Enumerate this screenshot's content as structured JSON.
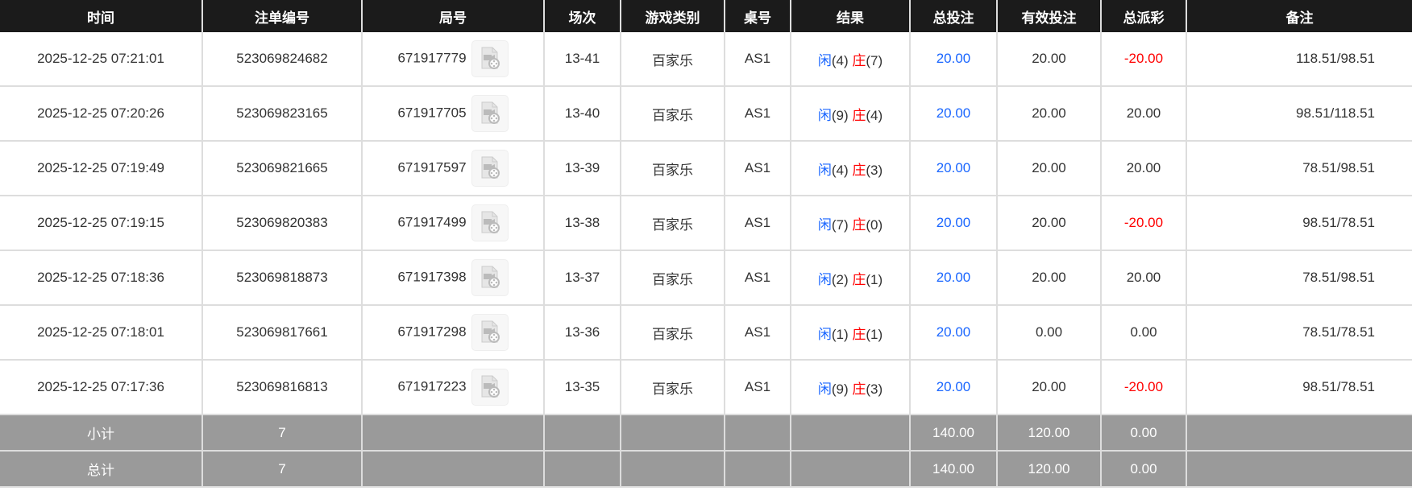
{
  "headers": [
    "时间",
    "注单编号",
    "局号",
    "场次",
    "游戏类别",
    "桌号",
    "结果",
    "总投注",
    "有效投注",
    "总派彩",
    "备注"
  ],
  "colors": {
    "header_bg": "#1b1b1b",
    "summary_bg": "#9a9a9a",
    "player": "#1a66ff",
    "banker": "#ff0000",
    "negative": "#ff0000",
    "bet": "#1a66ff"
  },
  "rows": [
    {
      "time": "2025-12-25 07:21:01",
      "order": "523069824682",
      "round": "671917779",
      "session": "13-41",
      "game": "百家乐",
      "table": "AS1",
      "player_label": "闲",
      "player_score": "(4)",
      "banker_label": "庄",
      "banker_score": "(7)",
      "bet": "20.00",
      "valid": "20.00",
      "payout": "-20.00",
      "payout_negative": true,
      "remark": "118.51/98.51"
    },
    {
      "time": "2025-12-25 07:20:26",
      "order": "523069823165",
      "round": "671917705",
      "session": "13-40",
      "game": "百家乐",
      "table": "AS1",
      "player_label": "闲",
      "player_score": "(9)",
      "banker_label": "庄",
      "banker_score": "(4)",
      "bet": "20.00",
      "valid": "20.00",
      "payout": "20.00",
      "payout_negative": false,
      "remark": "98.51/118.51"
    },
    {
      "time": "2025-12-25 07:19:49",
      "order": "523069821665",
      "round": "671917597",
      "session": "13-39",
      "game": "百家乐",
      "table": "AS1",
      "player_label": "闲",
      "player_score": "(4)",
      "banker_label": "庄",
      "banker_score": "(3)",
      "bet": "20.00",
      "valid": "20.00",
      "payout": "20.00",
      "payout_negative": false,
      "remark": "78.51/98.51"
    },
    {
      "time": "2025-12-25 07:19:15",
      "order": "523069820383",
      "round": "671917499",
      "session": "13-38",
      "game": "百家乐",
      "table": "AS1",
      "player_label": "闲",
      "player_score": "(7)",
      "banker_label": "庄",
      "banker_score": "(0)",
      "bet": "20.00",
      "valid": "20.00",
      "payout": "-20.00",
      "payout_negative": true,
      "remark": "98.51/78.51"
    },
    {
      "time": "2025-12-25 07:18:36",
      "order": "523069818873",
      "round": "671917398",
      "session": "13-37",
      "game": "百家乐",
      "table": "AS1",
      "player_label": "闲",
      "player_score": "(2)",
      "banker_label": "庄",
      "banker_score": "(1)",
      "bet": "20.00",
      "valid": "20.00",
      "payout": "20.00",
      "payout_negative": false,
      "remark": "78.51/98.51"
    },
    {
      "time": "2025-12-25 07:18:01",
      "order": "523069817661",
      "round": "671917298",
      "session": "13-36",
      "game": "百家乐",
      "table": "AS1",
      "player_label": "闲",
      "player_score": "(1)",
      "banker_label": "庄",
      "banker_score": "(1)",
      "bet": "20.00",
      "valid": "0.00",
      "payout": "0.00",
      "payout_negative": false,
      "remark": "78.51/78.51"
    },
    {
      "time": "2025-12-25 07:17:36",
      "order": "523069816813",
      "round": "671917223",
      "session": "13-35",
      "game": "百家乐",
      "table": "AS1",
      "player_label": "闲",
      "player_score": "(9)",
      "banker_label": "庄",
      "banker_score": "(3)",
      "bet": "20.00",
      "valid": "20.00",
      "payout": "-20.00",
      "payout_negative": true,
      "remark": "98.51/78.51"
    }
  ],
  "summary": [
    {
      "label": "小计",
      "count": "7",
      "bet": "140.00",
      "valid": "120.00",
      "payout": "0.00"
    },
    {
      "label": "总计",
      "count": "7",
      "bet": "140.00",
      "valid": "120.00",
      "payout": "0.00"
    }
  ]
}
